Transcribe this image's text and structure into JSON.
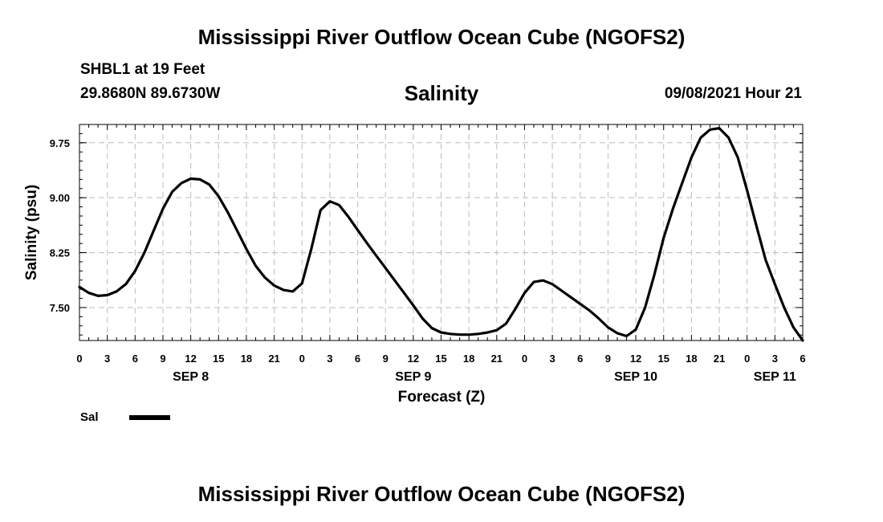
{
  "header": {
    "title": "Mississippi River Outflow Ocean Cube (NGOFS2)",
    "station": "SHBL1 at 19 Feet",
    "coords": "29.8680N  89.6730W",
    "variable": "Salinity",
    "datetime": "09/08/2021 Hour 21"
  },
  "footer": {
    "title": "Mississippi River Outflow Ocean Cube (NGOFS2)"
  },
  "colors": {
    "line": "#000000",
    "grid": "#bbbbbb"
  },
  "chart_data": {
    "type": "line",
    "title": "Salinity",
    "xlabel": "Forecast (Z)",
    "ylabel": "Salinity (psu)",
    "xlim": [
      0,
      78
    ],
    "ylim": [
      7.05,
      10.0
    ],
    "x_unit": "hours from SEP 8 00Z",
    "yticks": [
      7.5,
      8.25,
      9.0,
      9.75
    ],
    "ytick_labels": [
      "7.50",
      "8.25",
      "9.00",
      "9.75"
    ],
    "xticks": [
      0,
      3,
      6,
      9,
      12,
      15,
      18,
      21,
      24,
      27,
      30,
      33,
      36,
      39,
      42,
      45,
      48,
      51,
      54,
      57,
      60,
      63,
      66,
      69,
      72,
      75,
      78
    ],
    "xtick_labels": [
      "0",
      "3",
      "6",
      "9",
      "12",
      "15",
      "18",
      "21",
      "0",
      "3",
      "6",
      "9",
      "12",
      "15",
      "18",
      "21",
      "0",
      "3",
      "6",
      "9",
      "12",
      "15",
      "18",
      "21",
      "0",
      "3",
      "6"
    ],
    "day_labels": [
      {
        "label": "SEP 8",
        "x": 12
      },
      {
        "label": "SEP 9",
        "x": 36
      },
      {
        "label": "SEP 10",
        "x": 60
      },
      {
        "label": "SEP 11",
        "x": 75
      }
    ],
    "legend": [
      {
        "name": "Sal"
      }
    ],
    "series": [
      {
        "name": "Sal",
        "x": [
          0,
          1,
          2,
          3,
          4,
          5,
          6,
          7,
          8,
          9,
          10,
          11,
          12,
          13,
          14,
          15,
          16,
          17,
          18,
          19,
          20,
          21,
          22,
          23,
          24,
          25,
          26,
          27,
          28,
          29,
          30,
          31,
          32,
          33,
          34,
          35,
          36,
          37,
          38,
          39,
          40,
          41,
          42,
          43,
          44,
          45,
          46,
          47,
          48,
          49,
          50,
          51,
          52,
          53,
          54,
          55,
          56,
          57,
          58,
          59,
          60,
          61,
          62,
          63,
          64,
          65,
          66,
          67,
          68,
          69,
          70,
          71,
          72,
          73,
          74,
          75,
          76,
          77,
          78
        ],
        "y": [
          7.78,
          7.7,
          7.66,
          7.67,
          7.72,
          7.82,
          8.0,
          8.25,
          8.55,
          8.85,
          9.08,
          9.2,
          9.26,
          9.25,
          9.18,
          9.02,
          8.8,
          8.55,
          8.3,
          8.07,
          7.91,
          7.8,
          7.74,
          7.72,
          7.83,
          8.3,
          8.83,
          8.95,
          8.9,
          8.74,
          8.56,
          8.38,
          8.21,
          8.04,
          7.87,
          7.7,
          7.53,
          7.35,
          7.22,
          7.16,
          7.14,
          7.13,
          7.13,
          7.14,
          7.16,
          7.19,
          7.28,
          7.48,
          7.7,
          7.85,
          7.87,
          7.82,
          7.73,
          7.64,
          7.55,
          7.46,
          7.35,
          7.23,
          7.15,
          7.11,
          7.2,
          7.5,
          7.95,
          8.45,
          8.85,
          9.2,
          9.55,
          9.82,
          9.93,
          9.95,
          9.82,
          9.55,
          9.1,
          8.62,
          8.15,
          7.82,
          7.5,
          7.23,
          7.05
        ]
      }
    ]
  }
}
